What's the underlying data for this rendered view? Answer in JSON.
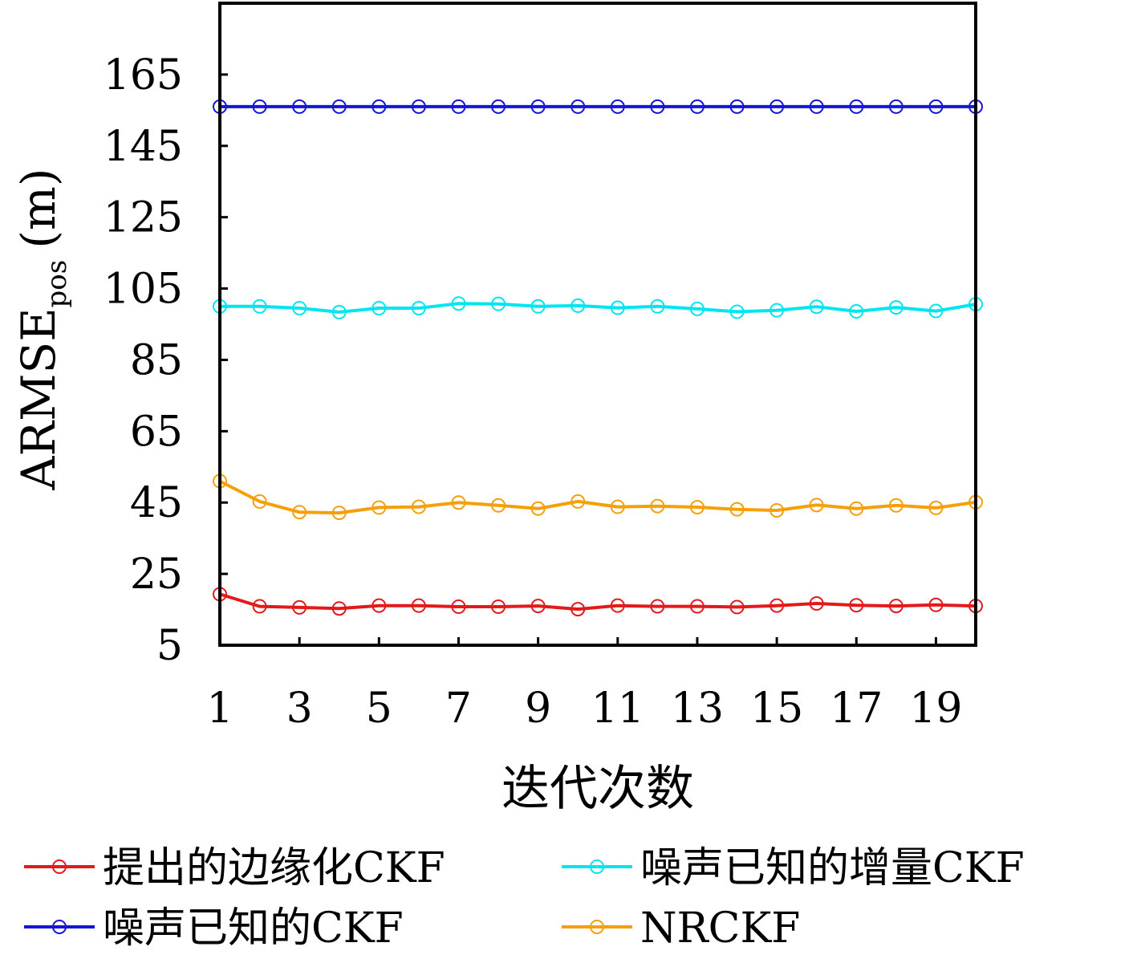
{
  "chart_data": {
    "type": "line",
    "xlabel": "迭代次数",
    "ylabel": {
      "main": "ARMSE",
      "sub": "pos",
      "unit": "(m)"
    },
    "xlim": [
      1,
      20
    ],
    "ylim": [
      5,
      185
    ],
    "xticks": [
      1,
      3,
      5,
      7,
      9,
      11,
      13,
      15,
      17,
      19
    ],
    "yticks": [
      5,
      25,
      45,
      65,
      85,
      105,
      125,
      145,
      165
    ],
    "grid": false,
    "legend_position": "bottom",
    "x": [
      1,
      2,
      3,
      4,
      5,
      6,
      7,
      8,
      9,
      10,
      11,
      12,
      13,
      14,
      15,
      16,
      17,
      18,
      19,
      20
    ],
    "series": [
      {
        "name": "提出的边缘化CKF",
        "color": "#e31a1c",
        "values": [
          19.3,
          15.9,
          15.6,
          15.3,
          16.1,
          16.1,
          15.8,
          15.8,
          16.0,
          15.1,
          16.1,
          15.9,
          15.9,
          15.7,
          16.1,
          16.7,
          16.2,
          16.0,
          16.3,
          16.0
        ]
      },
      {
        "name": "噪声已知的增量CKF",
        "color": "#00e5f0",
        "values": [
          100.0,
          100.0,
          99.5,
          98.4,
          99.5,
          99.5,
          100.8,
          100.7,
          100.0,
          100.2,
          99.6,
          100.0,
          99.3,
          98.5,
          98.9,
          99.9,
          98.6,
          99.7,
          98.7,
          100.6
        ]
      },
      {
        "name": "噪声已知的CKF",
        "color": "#1515d6",
        "values": [
          156,
          156,
          156,
          156,
          156,
          156,
          156,
          156,
          156,
          156,
          156,
          156,
          156,
          156,
          156,
          156,
          156,
          156,
          156,
          156
        ]
      },
      {
        "name": "NRCKF",
        "color": "#f5a00a",
        "values": [
          51.0,
          45.3,
          42.3,
          42.1,
          43.6,
          43.8,
          45.0,
          44.2,
          43.3,
          45.3,
          43.8,
          44.0,
          43.7,
          43.1,
          42.8,
          44.3,
          43.3,
          44.2,
          43.5,
          45.1
        ]
      }
    ]
  }
}
